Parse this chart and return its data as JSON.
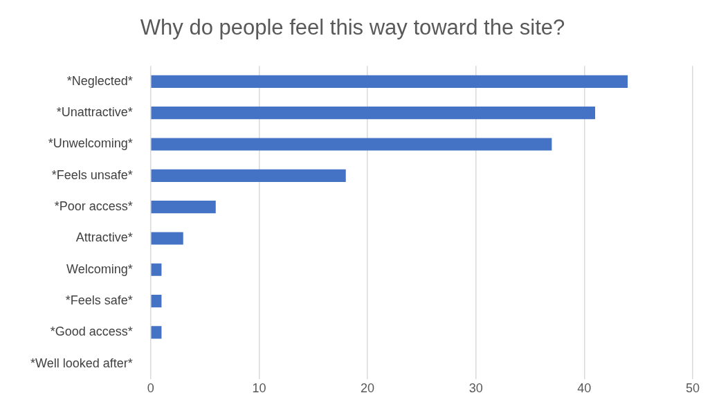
{
  "chart_data": {
    "type": "bar",
    "orientation": "horizontal",
    "title": "Why do people feel this way toward the site?",
    "categories": [
      "*Neglected*",
      "*Unattractive*",
      "*Unwelcoming*",
      "*Feels unsafe*",
      "*Poor access*",
      "Attractive*",
      "Welcoming*",
      "*Feels safe*",
      "*Good access*",
      "*Well looked after*"
    ],
    "values": [
      44,
      41,
      37,
      18,
      6,
      3,
      1,
      1,
      1,
      0
    ],
    "color": "#4472c4",
    "xlim": [
      0,
      50
    ],
    "xticks": [
      0,
      10,
      20,
      30,
      40,
      50
    ],
    "grid": "x",
    "legend": false
  }
}
